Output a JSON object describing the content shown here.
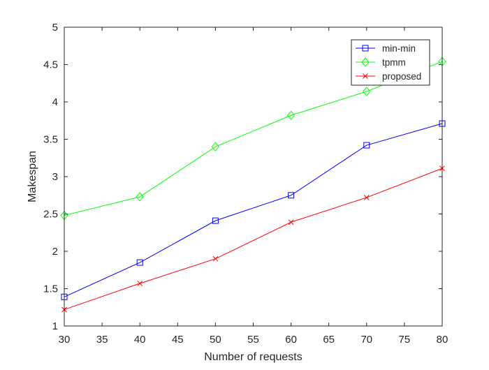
{
  "chart_data": {
    "type": "line",
    "xlabel": "Number of requests",
    "ylabel": "Makespan",
    "xlim": [
      30,
      80
    ],
    "ylim": [
      1,
      5
    ],
    "xticks": [
      30,
      35,
      40,
      45,
      50,
      55,
      60,
      65,
      70,
      75,
      80
    ],
    "yticks": [
      1,
      1.5,
      2,
      2.5,
      3,
      3.5,
      4,
      4.5,
      5
    ],
    "xtick_labels": [
      "30",
      "35",
      "40",
      "45",
      "50",
      "55",
      "60",
      "65",
      "70",
      "75",
      "80"
    ],
    "ytick_labels": [
      "1",
      "1.5",
      "2",
      "2.5",
      "3",
      "3.5",
      "4",
      "4.5",
      "5"
    ],
    "grid": false,
    "legend_position": "top-right",
    "x": [
      30,
      40,
      50,
      60,
      70,
      80
    ],
    "series": [
      {
        "name": "min-min",
        "values": [
          1.39,
          1.85,
          2.41,
          2.75,
          3.42,
          3.71
        ],
        "color": "#0000FF",
        "marker": "square"
      },
      {
        "name": "tpmm",
        "values": [
          2.48,
          2.73,
          3.4,
          3.82,
          4.14,
          4.54
        ],
        "color": "#00FF00",
        "marker": "diamond"
      },
      {
        "name": "proposed",
        "values": [
          1.22,
          1.57,
          1.9,
          2.39,
          2.72,
          3.11
        ],
        "color": "#FF0000",
        "marker": "x"
      }
    ]
  }
}
